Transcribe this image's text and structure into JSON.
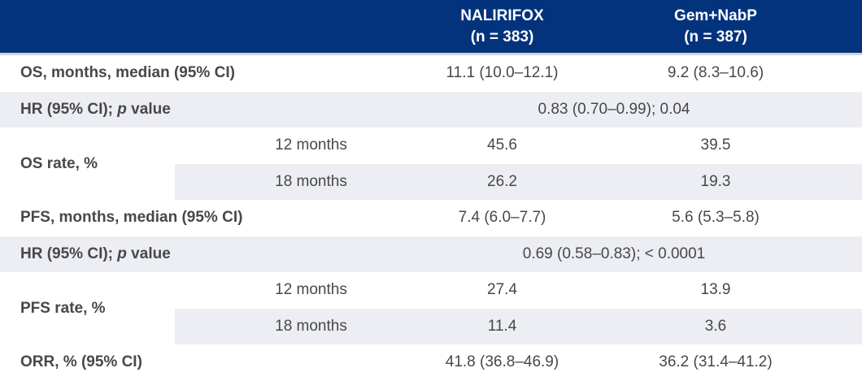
{
  "colors": {
    "header_bg": "#04337e",
    "header_text": "#ffffff",
    "stripe_bg": "#eceef3",
    "body_text": "#48484a"
  },
  "table": {
    "header": {
      "columns": [
        {
          "name": "NALIRIFOX",
          "n_label": "(n = 383)"
        },
        {
          "name": "Gem+NabP",
          "n_label": "(n = 387)"
        }
      ]
    },
    "rows": {
      "os_median": {
        "label": "OS, months, median (95% CI)",
        "nalirifox": "11.1 (10.0–12.1)",
        "gem_nabp": "9.2 (8.3–10.6)"
      },
      "os_hr": {
        "label_prefix": "HR (95% CI); ",
        "label_italic": "p",
        "label_suffix": " value",
        "value": "0.83 (0.70–0.99); 0.04"
      },
      "os_rate": {
        "label": "OS rate, %",
        "sub_rows": [
          {
            "timepoint": "12 months",
            "nalirifox": "45.6",
            "gem_nabp": "39.5"
          },
          {
            "timepoint": "18 months",
            "nalirifox": "26.2",
            "gem_nabp": "19.3"
          }
        ]
      },
      "pfs_median": {
        "label": "PFS, months, median (95% CI)",
        "nalirifox": "7.4 (6.0–7.7)",
        "gem_nabp": "5.6 (5.3–5.8)"
      },
      "pfs_hr": {
        "label_prefix": "HR (95% CI); ",
        "label_italic": "p",
        "label_suffix": " value",
        "value": "0.69 (0.58–0.83); < 0.0001"
      },
      "pfs_rate": {
        "label": "PFS rate, %",
        "sub_rows": [
          {
            "timepoint": "12 months",
            "nalirifox": "27.4",
            "gem_nabp": "13.9"
          },
          {
            "timepoint": "18 months",
            "nalirifox": "11.4",
            "gem_nabp": "3.6"
          }
        ]
      },
      "orr": {
        "label": "ORR, % (95% CI)",
        "nalirifox": "41.8 (36.8–46.9)",
        "gem_nabp": "36.2 (31.4–41.2)"
      }
    }
  }
}
